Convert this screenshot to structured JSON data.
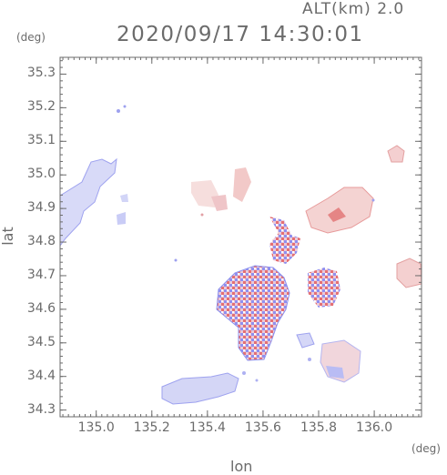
{
  "header": {
    "altitude": "ALT(km)  2.0",
    "datetime": "2020/09/17 14:30:01"
  },
  "axes": {
    "y_unit": "(deg)",
    "x_unit": "(deg)",
    "y_label": "lat",
    "x_label": "lon"
  },
  "chart_data": {
    "type": "heatmap",
    "title": "2020/09/17 14:30:01",
    "xlabel": "lon",
    "ylabel": "lat",
    "xlim": [
      134.87,
      136.17
    ],
    "ylim": [
      34.28,
      35.35
    ],
    "x_ticks": [
      "135.0",
      "135.2",
      "135.4",
      "135.6",
      "135.8",
      "136.0"
    ],
    "x_tick_values": [
      135.0,
      135.2,
      135.4,
      135.6,
      135.8,
      136.0
    ],
    "y_ticks": [
      "34.3",
      "34.4",
      "34.5",
      "34.6",
      "34.7",
      "34.8",
      "34.9",
      "35.0",
      "35.1",
      "35.2",
      "35.3"
    ],
    "y_tick_values": [
      34.3,
      34.4,
      34.5,
      34.6,
      34.7,
      34.8,
      34.9,
      35.0,
      35.1,
      35.2,
      35.3
    ],
    "colors": {
      "positive": "#e86a6a",
      "negative": "#8e94f0",
      "axis": "#6b6b6b"
    },
    "regions": [
      {
        "lon": 134.98,
        "lat": 34.9,
        "sign": "negative"
      },
      {
        "lon": 135.33,
        "lat": 34.35,
        "sign": "negative"
      },
      {
        "lon": 135.6,
        "lat": 34.6,
        "sign": "mixed"
      },
      {
        "lon": 135.9,
        "lat": 34.9,
        "sign": "positive"
      },
      {
        "lon": 135.85,
        "lat": 34.45,
        "sign": "mixed"
      },
      {
        "lon": 135.8,
        "lat": 34.7,
        "sign": "mixed"
      },
      {
        "lon": 135.48,
        "lat": 34.95,
        "sign": "positive"
      },
      {
        "lon": 136.13,
        "lat": 34.75,
        "sign": "positive"
      },
      {
        "lon": 136.06,
        "lat": 35.07,
        "sign": "positive"
      }
    ]
  }
}
